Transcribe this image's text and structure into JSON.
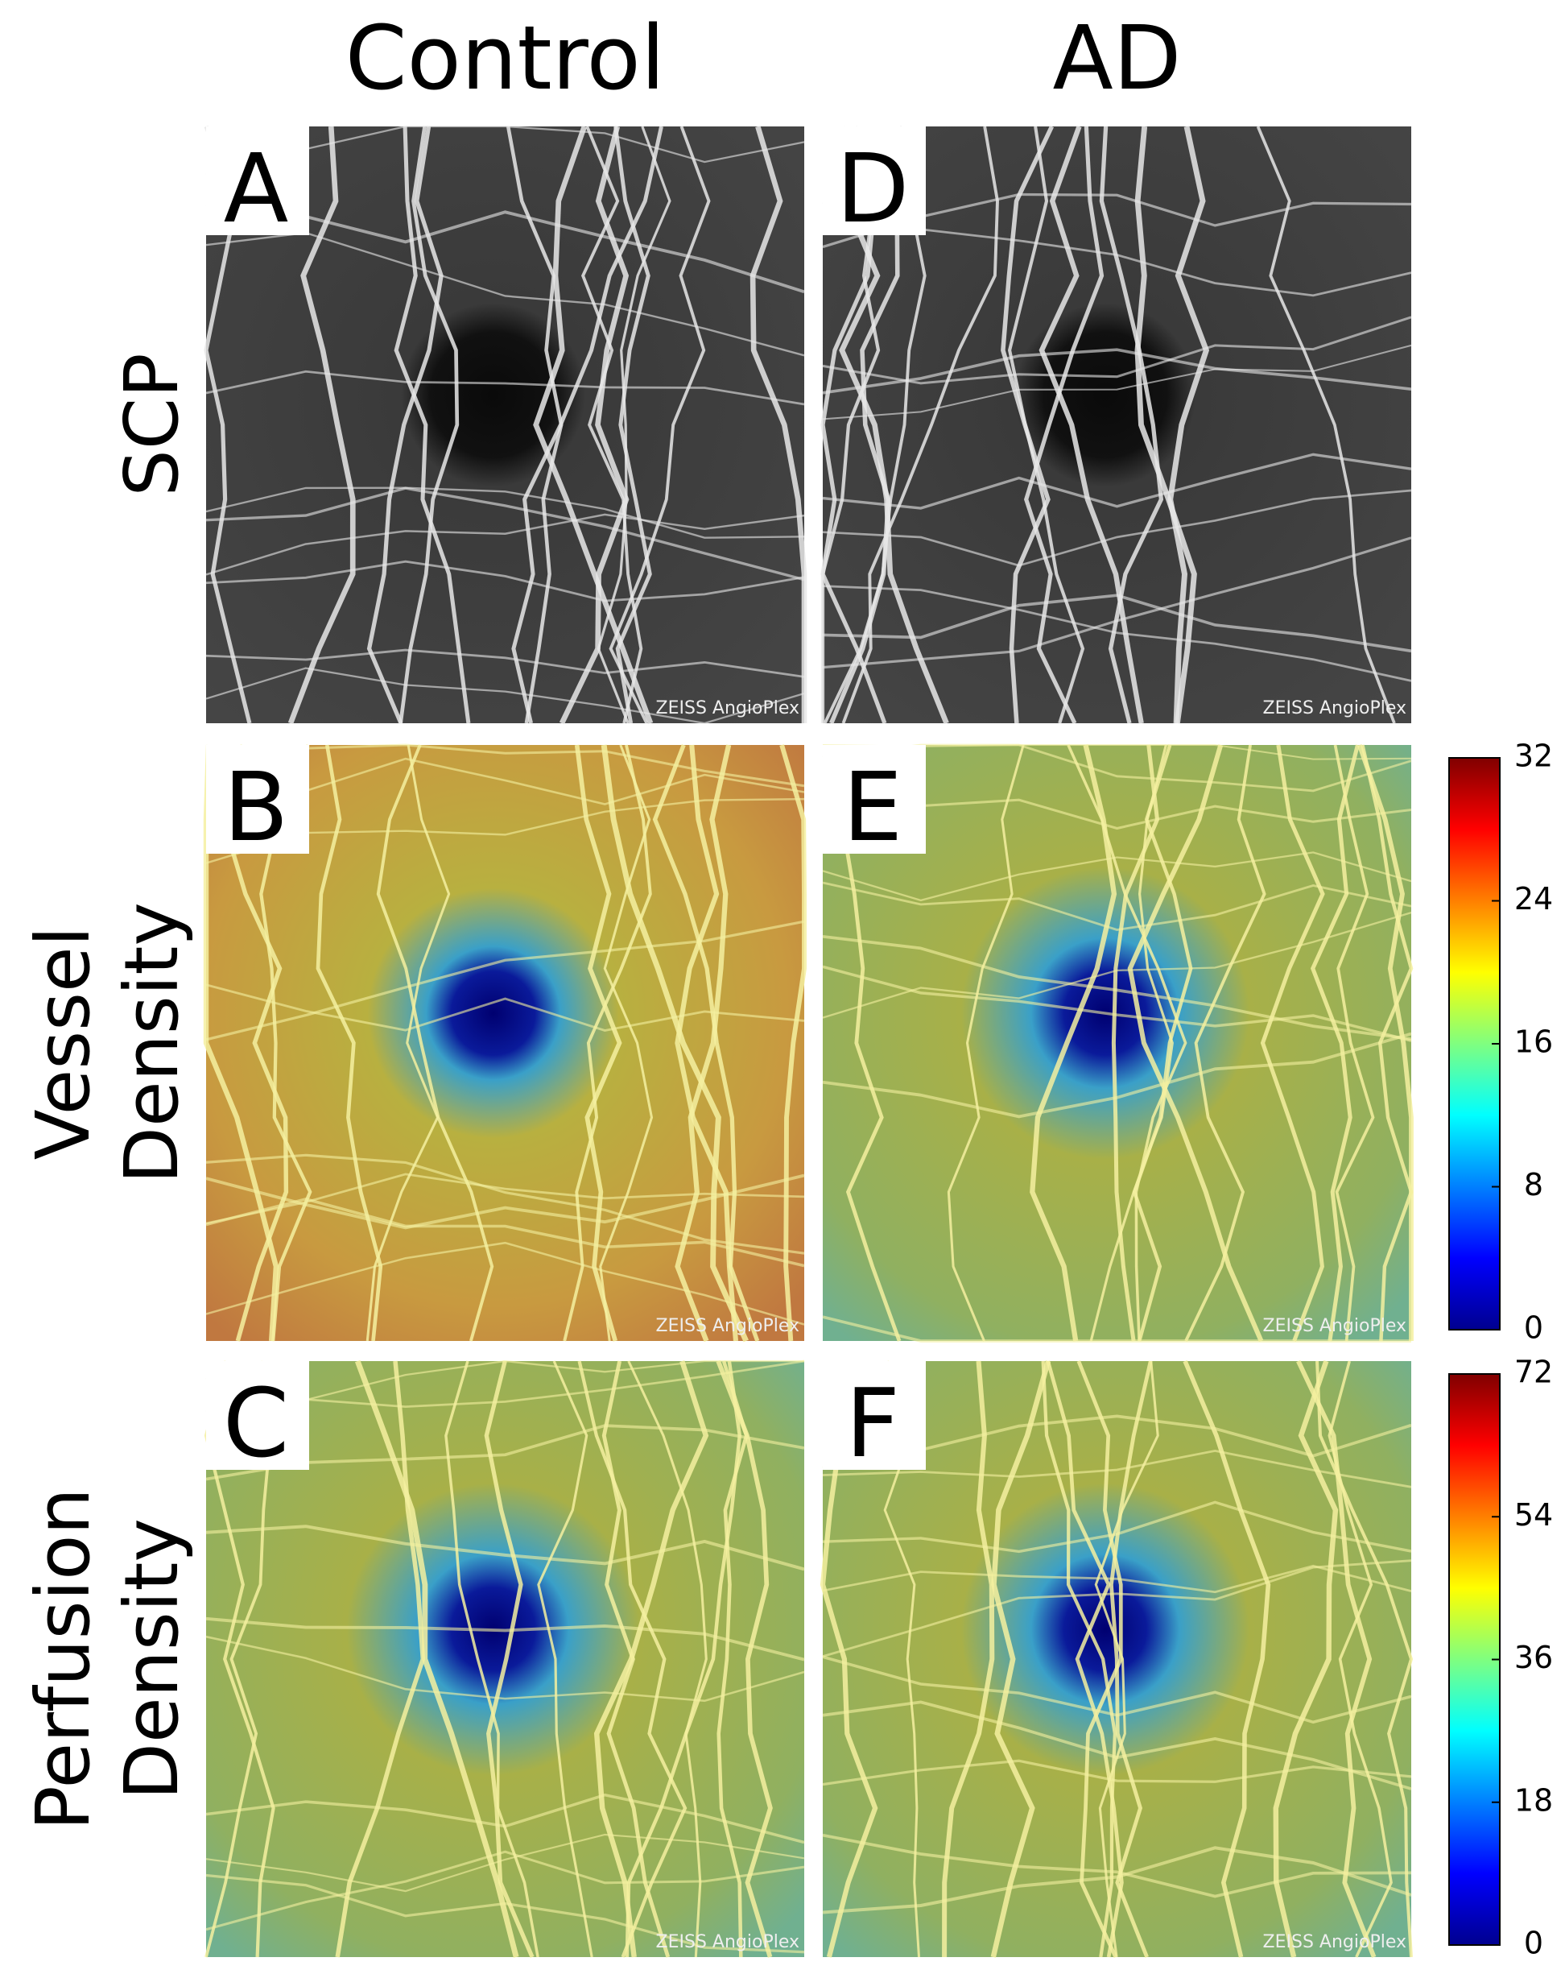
{
  "columns": [
    "Control",
    "AD"
  ],
  "rows": [
    {
      "label": [
        "SCP"
      ]
    },
    {
      "label": [
        "Vessel",
        "Density"
      ]
    },
    {
      "label": [
        "Perfusion",
        "Density"
      ]
    }
  ],
  "panels": [
    {
      "letter": "A",
      "watermark": "ZEISS AngioPlex"
    },
    {
      "letter": "B",
      "watermark": "ZEISS AngioPlex"
    },
    {
      "letter": "C",
      "watermark": "ZEISS AngioPlex"
    },
    {
      "letter": "D",
      "watermark": "ZEISS AngioPlex"
    },
    {
      "letter": "E",
      "watermark": "ZEISS AngioPlex"
    },
    {
      "letter": "F",
      "watermark": "ZEISS AngioPlex"
    }
  ],
  "colorbars": [
    {
      "lim": [
        0,
        32
      ],
      "ticks": [
        0,
        8,
        16,
        24,
        32
      ]
    },
    {
      "lim": [
        0,
        72
      ],
      "ticks": [
        0,
        18,
        36,
        54,
        72
      ]
    }
  ]
}
